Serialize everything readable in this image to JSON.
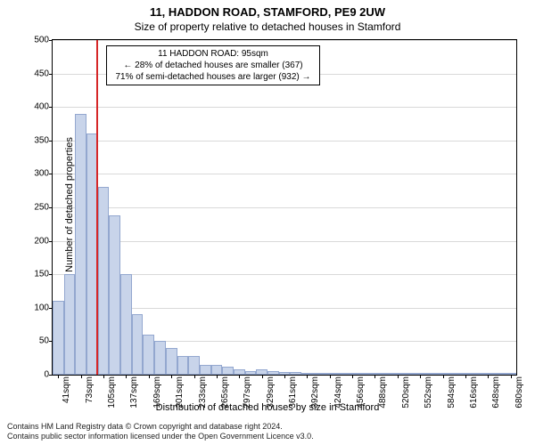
{
  "header": {
    "title": "11, HADDON ROAD, STAMFORD, PE9 2UW",
    "subtitle": "Size of property relative to detached houses in Stamford"
  },
  "chart": {
    "type": "histogram",
    "ylabel": "Number of detached properties",
    "xlabel": "Distribution of detached houses by size in Stamford",
    "ylim": [
      0,
      500
    ],
    "ytick_step": 50,
    "bar_fill": "#c8d4ea",
    "bar_stroke": "#93a7cf",
    "grid_color": "rgba(0,0,0,0.15)",
    "border_color": "#000000",
    "background_color": "#ffffff",
    "marker": {
      "position_sqm": 95,
      "color": "#d62728"
    },
    "info_box": {
      "line1": "11 HADDON ROAD: 95sqm",
      "line2": "← 28% of detached houses are smaller (367)",
      "line3": "71% of semi-detached houses are larger (932) →"
    },
    "x_start_sqm": 33,
    "x_bin_width_sqm": 16,
    "xticks": [
      "41sqm",
      "73sqm",
      "105sqm",
      "137sqm",
      "169sqm",
      "201sqm",
      "233sqm",
      "265sqm",
      "297sqm",
      "329sqm",
      "361sqm",
      "392sqm",
      "424sqm",
      "456sqm",
      "488sqm",
      "520sqm",
      "552sqm",
      "584sqm",
      "616sqm",
      "648sqm",
      "680sqm"
    ],
    "bars": [
      110,
      150,
      390,
      360,
      280,
      238,
      150,
      90,
      60,
      50,
      40,
      28,
      28,
      15,
      15,
      12,
      8,
      6,
      8,
      5,
      4,
      4,
      3,
      3,
      2,
      2,
      2,
      2,
      2,
      1,
      1,
      1,
      1,
      1,
      1,
      1,
      1,
      1,
      1,
      1,
      1
    ]
  },
  "footer": {
    "line1": "Contains HM Land Registry data © Crown copyright and database right 2024.",
    "line2": "Contains public sector information licensed under the Open Government Licence v3.0."
  }
}
